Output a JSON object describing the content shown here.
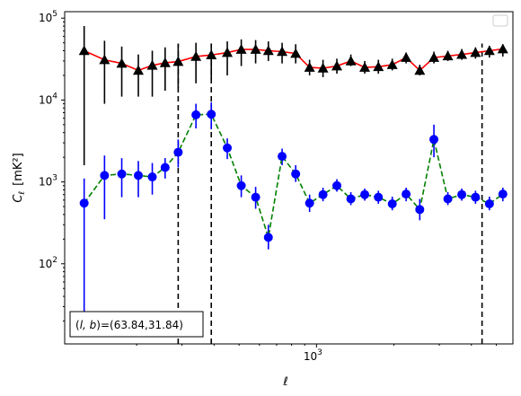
{
  "chart_data": {
    "type": "scatter",
    "xscale": "log",
    "yscale": "log",
    "xlim": [
      105,
      5800
    ],
    "ylim": [
      10.5,
      120000
    ],
    "xlabel": "ℓ",
    "ylabel_main": "C",
    "ylabel_sub": "ℓ",
    "ylabel_unit": "[mK²]",
    "x_major_ticks": [
      {
        "value": 1000,
        "base": "10",
        "exp": "3"
      }
    ],
    "y_major_ticks": [
      {
        "value": 100,
        "base": "10",
        "exp": "2"
      },
      {
        "value": 1000,
        "base": "10",
        "exp": "3"
      },
      {
        "value": 10000,
        "base": "10",
        "exp": "4"
      },
      {
        "value": 100000,
        "base": "10",
        "exp": "5"
      }
    ],
    "legend": {
      "placement": "upper right",
      "entries": []
    },
    "annotation": {
      "text": "(l, b)=(63.84,31.84)",
      "prefix_var": "l, b",
      "suffix": "=(63.84,31.84)"
    },
    "vlines": {
      "x": [
        290,
        390,
        4400
      ],
      "ymax": 49000,
      "color": "#000000",
      "style": "dashed"
    },
    "series": [
      {
        "marker": "triangle",
        "line_color": "#ff0000",
        "marker_color": "#000000",
        "errorbar_color": "#000000",
        "line_style": "solid",
        "x": [
          125,
          150,
          175,
          203,
          230,
          258,
          290,
          340,
          390,
          450,
          510,
          580,
          650,
          735,
          830,
          940,
          1060,
          1200,
          1360,
          1540,
          1740,
          1970,
          2230,
          2520,
          2860,
          3240,
          3670,
          4150,
          4700,
          5300
        ],
        "y": [
          40000,
          31000,
          28000,
          23000,
          26500,
          28500,
          29500,
          34000,
          35500,
          38000,
          41500,
          41500,
          40000,
          39000,
          37000,
          25000,
          24500,
          26000,
          30000,
          25000,
          25500,
          27000,
          33000,
          23000,
          33000,
          34500,
          36000,
          38000,
          40000,
          42000
        ],
        "y_low": [
          1600,
          9000,
          11000,
          11000,
          11000,
          13000,
          14000,
          16000,
          18000,
          20000,
          26000,
          28000,
          30000,
          28000,
          28000,
          20000,
          19000,
          21000,
          26000,
          21000,
          21000,
          23000,
          28000,
          20000,
          28000,
          30000,
          31000,
          32000,
          33000,
          34000
        ],
        "y_high": [
          80000,
          53000,
          45000,
          36000,
          40000,
          44000,
          48000,
          50000,
          49000,
          52000,
          55000,
          54000,
          52000,
          50000,
          48000,
          31000,
          31000,
          32000,
          36000,
          30000,
          31000,
          32000,
          38000,
          27000,
          39000,
          40000,
          42000,
          44000,
          46000,
          48000
        ]
      },
      {
        "marker": "circle",
        "line_color": "#008000",
        "marker_color": "#0000ff",
        "errorbar_color": "#0000ff",
        "line_style": "dashed",
        "x": [
          125,
          150,
          175,
          203,
          230,
          258,
          290,
          340,
          390,
          450,
          510,
          580,
          650,
          735,
          830,
          940,
          1060,
          1200,
          1360,
          1540,
          1740,
          1970,
          2230,
          2520,
          2860,
          3240,
          3670,
          4150,
          4700,
          5300
        ],
        "y": [
          550,
          1200,
          1250,
          1200,
          1150,
          1500,
          2300,
          6600,
          6700,
          2600,
          900,
          650,
          210,
          2050,
          1250,
          550,
          700,
          900,
          620,
          700,
          650,
          540,
          710,
          460,
          3300,
          620,
          700,
          650,
          540,
          710
        ],
        "y_low": [
          20,
          350,
          650,
          650,
          700,
          1100,
          1500,
          4500,
          4400,
          1900,
          650,
          470,
          150,
          1600,
          1000,
          430,
          580,
          760,
          520,
          590,
          540,
          450,
          580,
          340,
          2000,
          520,
          590,
          540,
          450,
          580
        ],
        "y_high": [
          1100,
          2100,
          1950,
          1800,
          1700,
          1950,
          3300,
          9000,
          9400,
          3400,
          1200,
          870,
          300,
          2550,
          1600,
          700,
          850,
          1080,
          750,
          830,
          780,
          660,
          850,
          620,
          5000,
          750,
          830,
          780,
          660,
          850
        ]
      }
    ]
  }
}
